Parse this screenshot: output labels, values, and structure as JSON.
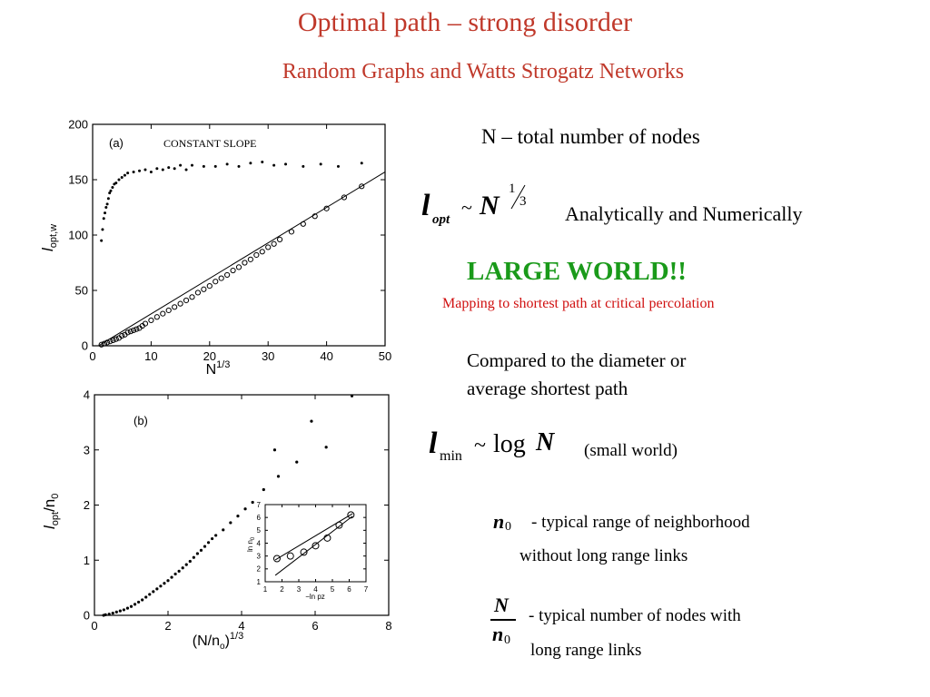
{
  "slide": {
    "title": "Optimal path – strong disorder",
    "subtitle": "Random Graphs and Watts Strogatz Networks"
  },
  "text_panel": {
    "n_definition": "N – total number of nodes",
    "formula1": {
      "lhs": "l",
      "lhs_sub": "opt",
      "tilde": "~",
      "base": "N",
      "exp_num": "1",
      "exp_den": "3"
    },
    "analytically": "Analytically and Numerically",
    "large_world": "LARGE WORLD!!",
    "mapping": "Mapping to shortest path  at critical percolation",
    "compared_line1": "Compared to the diameter or",
    "compared_line2": "average shortest path",
    "formula2": {
      "lhs": "l",
      "lhs_sub": "min",
      "tilde": "~",
      "log": "log",
      "var": "N"
    },
    "small_world": "(small world)",
    "n0": {
      "var": "n",
      "sub": "0"
    },
    "n0_desc_line1": "- typical range of neighborhood",
    "n0_desc_line2": "without long range links",
    "frac": {
      "num": "N",
      "den_var": "n",
      "den_sub": "0"
    },
    "frac_desc_line1": "- typical number of nodes with",
    "frac_desc_line2": "long range links"
  },
  "colors": {
    "title": "#c0392b",
    "large_world": "#1a9a1a",
    "mapping": "#d01010"
  },
  "chart_data": [
    {
      "type": "scatter",
      "panel_label": "(a)",
      "annotation": "CONSTANT SLOPE",
      "xlabel": "N",
      "xlabel_sup": "1/3",
      "ylabel": "l",
      "ylabel_sub": "opt,w",
      "xlim": [
        0,
        50
      ],
      "ylim": [
        0,
        200
      ],
      "xticks": [
        "0",
        "10",
        "20",
        "30",
        "40",
        "50"
      ],
      "yticks": [
        "0",
        "50",
        "100",
        "150",
        "200"
      ],
      "series": [
        {
          "marker": "dot",
          "x": [
            1.5,
            1.7,
            1.9,
            2.1,
            2.3,
            2.5,
            2.7,
            2.9,
            3.1,
            3.4,
            3.7,
            4.0,
            4.5,
            5.0,
            5.5,
            6.0,
            7.0,
            8.0,
            9.0,
            10.0,
            11.0,
            12.0,
            13.0,
            14.0,
            15.0,
            16.0,
            17.0,
            19.0,
            21.0,
            23.0,
            25.0,
            27.0,
            29.0,
            31.0,
            33.0,
            36.0,
            39.0,
            42.0,
            46.0
          ],
          "y": [
            95,
            105,
            115,
            120,
            125,
            128,
            133,
            138,
            140,
            143,
            146,
            147,
            150,
            152,
            154,
            156,
            157,
            158,
            159,
            157,
            160,
            159,
            161,
            160,
            163,
            159,
            163,
            162,
            162,
            164,
            162,
            165,
            166,
            163,
            164,
            162,
            164,
            162,
            165
          ]
        },
        {
          "marker": "circle",
          "x": [
            1.5,
            2,
            2.5,
            3,
            3.5,
            4,
            4.5,
            5,
            5.5,
            6,
            6.5,
            7,
            7.5,
            8,
            8.5,
            9,
            10,
            11,
            12,
            13,
            14,
            15,
            16,
            17,
            18,
            19,
            20,
            21,
            22,
            23,
            24,
            25,
            26,
            27,
            28,
            29,
            30,
            31,
            32,
            34,
            36,
            38,
            40,
            43,
            46
          ],
          "y": [
            1,
            2,
            3,
            4,
            5,
            6,
            7,
            9,
            10,
            12,
            13,
            14,
            15,
            16,
            18,
            20,
            23,
            26,
            29,
            32,
            35,
            38,
            41,
            44,
            48,
            51,
            54,
            58,
            61,
            64,
            68,
            71,
            75,
            78,
            82,
            85,
            89,
            92,
            96,
            103,
            110,
            117,
            124,
            134,
            144
          ]
        },
        {
          "marker": "line",
          "x": [
            1,
            50
          ],
          "y": [
            0,
            157
          ]
        }
      ]
    },
    {
      "type": "scatter",
      "panel_label": "(b)",
      "xlabel": "(N/n",
      "xlabel_sub": "o",
      "xlabel_end": ")",
      "xlabel_sup": "1/3",
      "ylabel": "l",
      "ylabel_sub": "opt",
      "ylabel_end": "/n",
      "ylabel_end_sub": "0",
      "xlim": [
        0,
        8
      ],
      "ylim": [
        0,
        4
      ],
      "xticks": [
        "0",
        "2",
        "4",
        "6",
        "8"
      ],
      "yticks": [
        "0",
        "1",
        "2",
        "3",
        "4"
      ],
      "series": [
        {
          "marker": "dot",
          "x": [
            0.25,
            0.3,
            0.4,
            0.5,
            0.6,
            0.7,
            0.8,
            0.9,
            1.0,
            1.1,
            1.2,
            1.3,
            1.4,
            1.5,
            1.6,
            1.7,
            1.8,
            1.9,
            2.0,
            2.1,
            2.2,
            2.3,
            2.4,
            2.5,
            2.6,
            2.7,
            2.8,
            2.9,
            3.0,
            3.1,
            3.2,
            3.3,
            3.5,
            3.7,
            3.9,
            4.1,
            4.3,
            4.6,
            5.0,
            5.5,
            6.3
          ],
          "y": [
            0.0,
            0.01,
            0.02,
            0.04,
            0.06,
            0.08,
            0.1,
            0.13,
            0.16,
            0.2,
            0.24,
            0.28,
            0.33,
            0.38,
            0.43,
            0.48,
            0.53,
            0.58,
            0.63,
            0.69,
            0.75,
            0.8,
            0.86,
            0.92,
            0.98,
            1.05,
            1.12,
            1.18,
            1.25,
            1.32,
            1.39,
            1.45,
            1.55,
            1.68,
            1.8,
            1.93,
            2.05,
            2.28,
            2.52,
            2.78,
            3.05
          ]
        },
        {
          "marker": "dot",
          "x": [
            4.9,
            5.9,
            7.0
          ],
          "y": [
            3.0,
            3.52,
            3.98
          ]
        }
      ]
    },
    {
      "type": "scatter",
      "panel_label": "inset",
      "xlabel": "−ln pz",
      "ylabel": "ln n",
      "ylabel_sub": "0",
      "xlim": [
        1,
        7
      ],
      "ylim": [
        1,
        7
      ],
      "xticks": [
        "1",
        "2",
        "3",
        "4",
        "5",
        "6",
        "7"
      ],
      "yticks": [
        "1",
        "2",
        "3",
        "4",
        "5",
        "6",
        "7"
      ],
      "series": [
        {
          "marker": "circle",
          "x": [
            1.7,
            2.5,
            3.3,
            4.0,
            4.7,
            5.4,
            6.1
          ],
          "y": [
            2.8,
            3.0,
            3.3,
            3.8,
            4.4,
            5.4,
            6.2
          ]
        },
        {
          "marker": "line",
          "x": [
            1.6,
            6.2
          ],
          "y": [
            2.7,
            6.3
          ]
        },
        {
          "marker": "line",
          "x": [
            1.6,
            6.2
          ],
          "y": [
            1.5,
            6.1
          ]
        }
      ]
    }
  ]
}
